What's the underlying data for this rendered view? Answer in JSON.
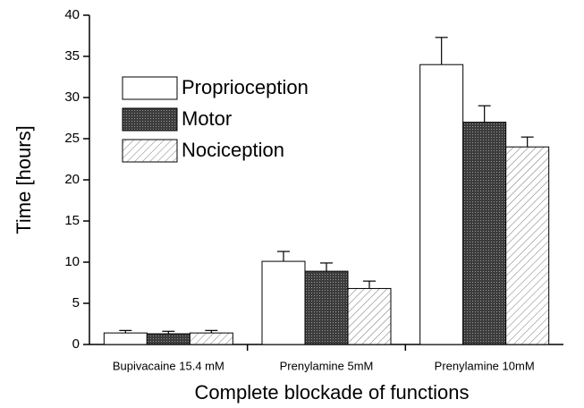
{
  "chart_data": {
    "type": "bar",
    "xlabel": "Complete blockade of functions",
    "ylabel": "Time [hours]",
    "categories": [
      "Bupivacaine 15.4 mM",
      "Prenylamine 5mM",
      "Prenylamine 10mM"
    ],
    "series": [
      {
        "name": "Proprioception",
        "color": "#ffffff",
        "pattern": "solid",
        "values": [
          1.4,
          10.1,
          34.0
        ],
        "errors": [
          0.3,
          1.2,
          3.3
        ]
      },
      {
        "name": "Motor",
        "color": "#3c3c3c",
        "pattern": "stipple",
        "values": [
          1.3,
          8.9,
          27.0
        ],
        "errors": [
          0.3,
          1.0,
          2.0
        ]
      },
      {
        "name": "Nociception",
        "color": "#ffffff",
        "pattern": "hatch",
        "values": [
          1.4,
          6.8,
          24.0
        ],
        "errors": [
          0.3,
          0.9,
          1.2
        ]
      }
    ],
    "ylim": [
      0,
      40
    ],
    "yticks": [
      0,
      5,
      10,
      15,
      20,
      25,
      30,
      35,
      40
    ],
    "legend": "upper left",
    "grid": false
  }
}
